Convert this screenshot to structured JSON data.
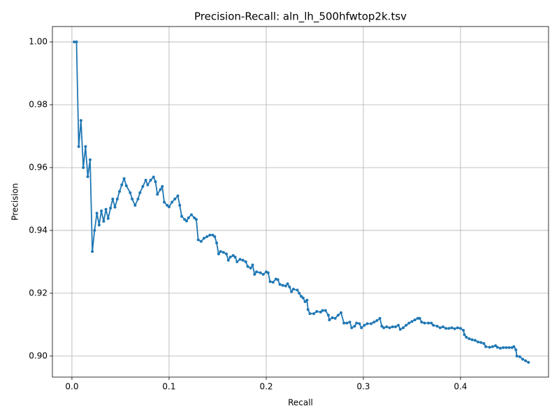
{
  "chart_data": {
    "type": "line",
    "title": "Precision-Recall: aln_lh_500hfwtop2k.tsv",
    "x_label": "Recall",
    "y_label": "Precision",
    "color": "#1f77b4",
    "grid": true,
    "xlim": [
      -0.0201,
      0.4906
    ],
    "ylim": [
      0.8933,
      1.0049
    ],
    "xticks": [
      {
        "value": 0,
        "label": "0.0"
      },
      {
        "value": 0.1,
        "label": "0.1"
      },
      {
        "value": 0.2,
        "label": "0.2"
      },
      {
        "value": 0.3,
        "label": "0.3"
      },
      {
        "value": 0.4,
        "label": "0.4"
      }
    ],
    "yticks": [
      {
        "value": 0.9,
        "label": "0.90"
      },
      {
        "value": 0.92,
        "label": "0.92"
      },
      {
        "value": 0.94,
        "label": "0.94"
      },
      {
        "value": 0.96,
        "label": "0.96"
      },
      {
        "value": 0.98,
        "label": "0.98"
      },
      {
        "value": 1,
        "label": "1.00"
      }
    ],
    "x": [
      0.0023,
      0.0047,
      0.007,
      0.0093,
      0.0117,
      0.014,
      0.0163,
      0.0187,
      0.021,
      0.0233,
      0.0257,
      0.028,
      0.0303,
      0.0327,
      0.035,
      0.0373,
      0.0397,
      0.042,
      0.0443,
      0.0467,
      0.049,
      0.0513,
      0.0537,
      0.056,
      0.06,
      0.062,
      0.065,
      0.068,
      0.07,
      0.073,
      0.076,
      0.078,
      0.081,
      0.084,
      0.086,
      0.088,
      0.091,
      0.093,
      0.095,
      0.098,
      0.1,
      0.103,
      0.106,
      0.109,
      0.111,
      0.113,
      0.116,
      0.118,
      0.12,
      0.123,
      0.126,
      0.128,
      0.13,
      0.133,
      0.136,
      0.139,
      0.142,
      0.145,
      0.147,
      0.149,
      0.151,
      0.153,
      0.156,
      0.159,
      0.161,
      0.163,
      0.166,
      0.168,
      0.17,
      0.173,
      0.176,
      0.179,
      0.181,
      0.184,
      0.186,
      0.188,
      0.19,
      0.194,
      0.197,
      0.2,
      0.202,
      0.204,
      0.207,
      0.21,
      0.212,
      0.214,
      0.217,
      0.22,
      0.222,
      0.224,
      0.226,
      0.228,
      0.232,
      0.234,
      0.236,
      0.238,
      0.24,
      0.242,
      0.243,
      0.245,
      0.249,
      0.252,
      0.256,
      0.258,
      0.261,
      0.264,
      0.265,
      0.268,
      0.271,
      0.274,
      0.277,
      0.28,
      0.283,
      0.286,
      0.288,
      0.291,
      0.293,
      0.296,
      0.298,
      0.301,
      0.304,
      0.308,
      0.311,
      0.314,
      0.317,
      0.319,
      0.321,
      0.324,
      0.327,
      0.33,
      0.333,
      0.336,
      0.338,
      0.341,
      0.344,
      0.347,
      0.35,
      0.353,
      0.356,
      0.358,
      0.36,
      0.363,
      0.367,
      0.37,
      0.372,
      0.376,
      0.379,
      0.382,
      0.385,
      0.388,
      0.391,
      0.394,
      0.397,
      0.4,
      0.403,
      0.404,
      0.406,
      0.409,
      0.412,
      0.415,
      0.418,
      0.421,
      0.424,
      0.426,
      0.43,
      0.433,
      0.436,
      0.438,
      0.441,
      0.444,
      0.447,
      0.45,
      0.453,
      0.455,
      0.457,
      0.458,
      0.461,
      0.464,
      0.467,
      0.47
    ],
    "values": [
      1.0,
      1.0,
      0.9667,
      0.975,
      0.96,
      0.9667,
      0.9571,
      0.9625,
      0.9333,
      0.94,
      0.9455,
      0.9417,
      0.9462,
      0.9429,
      0.9467,
      0.9438,
      0.9471,
      0.95,
      0.9474,
      0.95,
      0.9524,
      0.9545,
      0.9565,
      0.9542,
      0.952,
      0.95,
      0.948,
      0.95,
      0.952,
      0.954,
      0.956,
      0.9545,
      0.956,
      0.957,
      0.9555,
      0.9515,
      0.953,
      0.954,
      0.949,
      0.948,
      0.9475,
      0.949,
      0.95,
      0.951,
      0.948,
      0.9445,
      0.9435,
      0.943,
      0.944,
      0.945,
      0.944,
      0.9435,
      0.937,
      0.9365,
      0.9375,
      0.938,
      0.9385,
      0.9385,
      0.938,
      0.936,
      0.9325,
      0.9333,
      0.933,
      0.9325,
      0.9305,
      0.9315,
      0.932,
      0.9315,
      0.93,
      0.9308,
      0.9305,
      0.93,
      0.9285,
      0.928,
      0.929,
      0.926,
      0.9268,
      0.9265,
      0.926,
      0.9268,
      0.9265,
      0.9237,
      0.9235,
      0.9245,
      0.9243,
      0.9228,
      0.9225,
      0.9223,
      0.923,
      0.922,
      0.9205,
      0.9213,
      0.921,
      0.92,
      0.919,
      0.9185,
      0.9173,
      0.9178,
      0.9148,
      0.9135,
      0.9135,
      0.9142,
      0.914,
      0.9145,
      0.9145,
      0.913,
      0.9115,
      0.9122,
      0.912,
      0.913,
      0.9138,
      0.9105,
      0.9105,
      0.9108,
      0.909,
      0.9095,
      0.9105,
      0.9103,
      0.909,
      0.9098,
      0.9103,
      0.9103,
      0.9108,
      0.9113,
      0.912,
      0.9095,
      0.909,
      0.9093,
      0.909,
      0.9093,
      0.9093,
      0.9098,
      0.9085,
      0.909,
      0.9098,
      0.9105,
      0.911,
      0.9115,
      0.912,
      0.912,
      0.9108,
      0.9105,
      0.9105,
      0.9105,
      0.9098,
      0.9095,
      0.909,
      0.9093,
      0.9088,
      0.9088,
      0.909,
      0.9087,
      0.909,
      0.9088,
      0.9082,
      0.9068,
      0.906,
      0.9055,
      0.9052,
      0.905,
      0.9045,
      0.9043,
      0.904,
      0.903,
      0.9028,
      0.903,
      0.9033,
      0.9028,
      0.9025,
      0.9027,
      0.9027,
      0.9027,
      0.9027,
      0.903,
      0.902,
      0.9,
      0.8998,
      0.899,
      0.8985,
      0.898
    ]
  }
}
